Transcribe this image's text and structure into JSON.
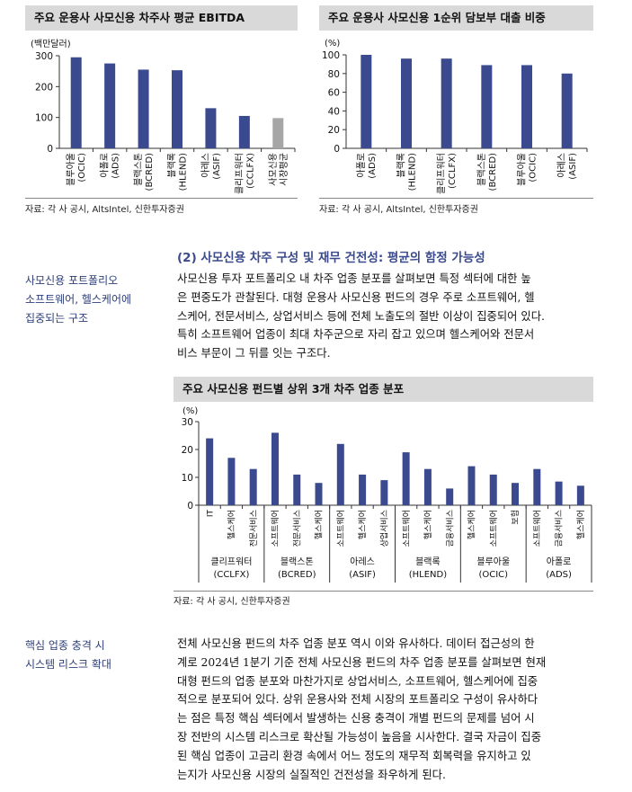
{
  "chart_data": [
    {
      "type": "bar",
      "title": "주요 운용사 사모신용 차주사 평균 EBITDA",
      "ylabel": "(백만달러)",
      "ylim": [
        0,
        300
      ],
      "yticks": [
        0,
        100,
        200,
        300
      ],
      "categories": [
        "블루아울\n(OCIC)",
        "아폴로\n(ADS)",
        "블랙스톤\n(BCRED)",
        "블랙록\n(HLEND)",
        "아레스\n(ASIF)",
        "클리프워터\n(CCLFX)",
        "사모신용\n시장평균"
      ],
      "values": [
        295,
        275,
        255,
        253,
        130,
        105,
        98
      ],
      "colors": [
        "#3b4a8e",
        "#3b4a8e",
        "#3b4a8e",
        "#3b4a8e",
        "#3b4a8e",
        "#3b4a8e",
        "#a6a6a6"
      ],
      "source": "자료: 각 사 공시, AltsIntel, 신한투자증권"
    },
    {
      "type": "bar",
      "title": "주요 운용사 사모신용 1순위 담보부 대출 비중",
      "ylabel": "(%)",
      "ylim": [
        0,
        100
      ],
      "yticks": [
        0,
        20,
        40,
        60,
        80,
        100
      ],
      "categories": [
        "아폴로\n(ADS)",
        "블랙록\n(HLEND)",
        "클리프워터\n(CCLFX)",
        "블랙스톤\n(BCRED)",
        "블루아울\n(OCIC)",
        "아레스\n(ASIF)"
      ],
      "values": [
        100,
        96,
        96,
        89,
        89,
        80
      ],
      "source": "자료: 각 사 공시, AltsIntel, 신한투자증권"
    },
    {
      "type": "bar",
      "title": "주요 사모신용 펀드별 상위 3개 차주 업종 분포",
      "ylabel": "(%)",
      "ylim": [
        0,
        30
      ],
      "yticks": [
        0,
        10,
        20,
        30
      ],
      "groups": [
        {
          "label": "클리프워터\n(CCLFX)",
          "categories": [
            "IT",
            "헬스케어",
            "전문서비스"
          ],
          "values": [
            24,
            17,
            13
          ]
        },
        {
          "label": "블랙스톤\n(BCRED)",
          "categories": [
            "소프트웨어",
            "전문서비스",
            "헬스케어"
          ],
          "values": [
            26,
            11,
            8
          ]
        },
        {
          "label": "아레스\n(ASIF)",
          "categories": [
            "소프트웨어",
            "헬스케어",
            "상업서비스"
          ],
          "values": [
            22,
            11,
            9
          ]
        },
        {
          "label": "블랙록\n(HLEND)",
          "categories": [
            "소프트웨어",
            "헬스케어",
            "금융서비스"
          ],
          "values": [
            19,
            13,
            6
          ]
        },
        {
          "label": "블루아울\n(OCIC)",
          "categories": [
            "헬스케어",
            "소프트웨어",
            "보험"
          ],
          "values": [
            14,
            11,
            8
          ]
        },
        {
          "label": "아폴로\n(ADS)",
          "categories": [
            "소프트웨어",
            "금융서비스",
            "헬스케어"
          ],
          "values": [
            13,
            8.5,
            7
          ]
        }
      ],
      "source": "자료: 각 사 공시, 신한투자증권"
    }
  ],
  "section1": {
    "sidebar": [
      "사모신용 포트폴리오",
      "소프트웨어, 헬스케어에",
      "집중되는 구조"
    ],
    "heading": "(2) 사모신용 차주 구성 및 재무 건전성: 평균의 함정 가능성",
    "lines": [
      "사모신용 투자 포트폴리오 내 차주 업종 분포를 살펴보면 특정 섹터에 대한 높",
      "은 편중도가 관찰된다. 대형 운용사 사모신용 펀드의 경우 주로 소프트웨어, 헬",
      "스케어, 전문서비스, 상업서비스 등에 전체 노출도의 절반 이상이 집중되어 있다.",
      "특히 소프트웨어 업종이 최대 차주군으로 자리 잡고 있으며 헬스케어와 전문서",
      "비스 부문이 그 뒤를 잇는 구조다."
    ]
  },
  "section2": {
    "sidebar": [
      "핵심 업종 충격 시",
      "시스템 리스크 확대"
    ],
    "lines": [
      "전체 사모신용 펀드의 차주 업종 분포 역시 이와 유사하다. 데이터 접근성의 한",
      "계로 2024년 1분기 기준 전체 사모신용 펀드의 차주 업종 분포를 살펴보면 현재",
      "대형 펀드의 업종 분포와 마찬가지로 상업서비스, 소프트웨어, 헬스케어에 집중",
      "적으로 분포되어 있다. 상위 운용사와 전체 시장의 포트폴리오 구성이 유사하다",
      "는 점은 특정 핵심 섹터에서 발생하는 신용 충격이 개별 펀드의 문제를 넘어 시",
      "장 전반의 시스템 리스크로 확산될 가능성이 높음을 시사한다. 결국 자금이 집중",
      "된 핵심 업종이 고금리 환경 속에서 어느 정도의 재무적 회복력을 유지하고 있",
      "는지가 사모신용 시장의 실질적인 건전성을 좌우하게 된다."
    ]
  }
}
